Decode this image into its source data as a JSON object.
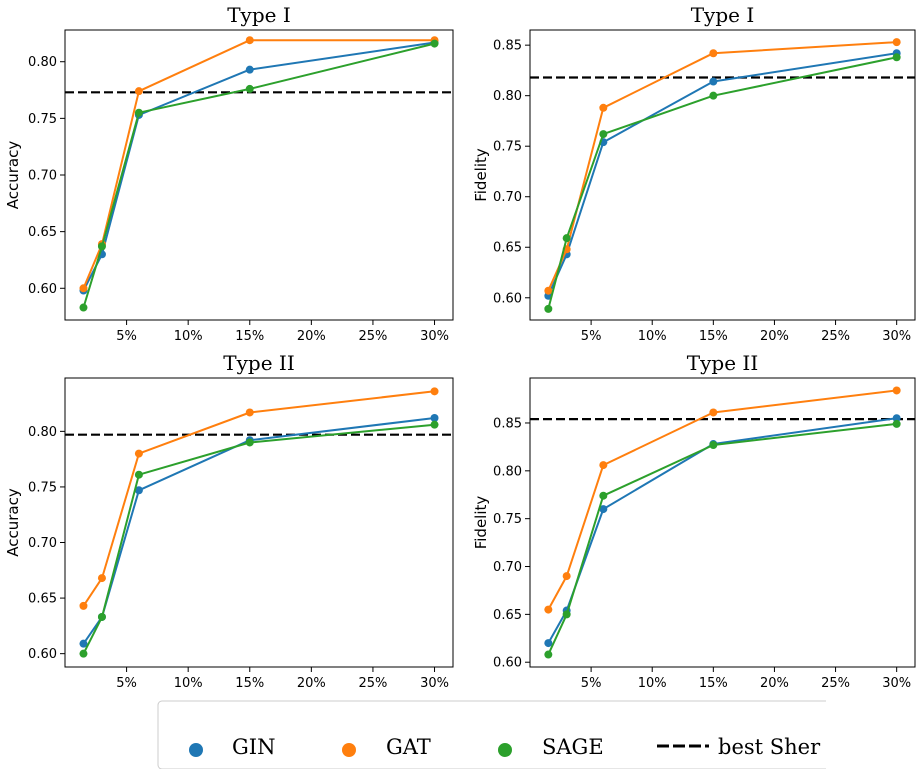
{
  "chart_data": [
    {
      "type": "line",
      "title": "Type I",
      "ylabel": "Accuracy",
      "xlabel": "",
      "x": [
        1.5,
        3,
        6,
        15,
        30
      ],
      "xticks": [
        5,
        10,
        15,
        20,
        25,
        30
      ],
      "xtick_labels": [
        "5%",
        "10%",
        "15%",
        "20%",
        "25%",
        "30%"
      ],
      "xlim": [
        0,
        31.5
      ],
      "ylim": [
        0.572,
        0.828
      ],
      "yticks": [
        0.6,
        0.65,
        0.7,
        0.75,
        0.8
      ],
      "ytick_labels": [
        "0.60",
        "0.65",
        "0.70",
        "0.75",
        "0.80"
      ],
      "series": [
        {
          "name": "GIN",
          "color": "#1f77b4",
          "values": [
            0.598,
            0.63,
            0.753,
            0.793,
            0.817
          ]
        },
        {
          "name": "GAT",
          "color": "#ff7f0e",
          "values": [
            0.6,
            0.639,
            0.774,
            0.819,
            0.819
          ]
        },
        {
          "name": "SAGE",
          "color": "#2ca02c",
          "values": [
            0.583,
            0.637,
            0.755,
            0.776,
            0.816
          ]
        }
      ],
      "hline": 0.773
    },
    {
      "type": "line",
      "title": "Type I",
      "ylabel": "Fidelity",
      "xlabel": "",
      "x": [
        1.5,
        3,
        6,
        15,
        30
      ],
      "xticks": [
        5,
        10,
        15,
        20,
        25,
        30
      ],
      "xtick_labels": [
        "5%",
        "10%",
        "15%",
        "20%",
        "25%",
        "30%"
      ],
      "xlim": [
        0,
        31.5
      ],
      "ylim": [
        0.578,
        0.865
      ],
      "yticks": [
        0.6,
        0.65,
        0.7,
        0.75,
        0.8,
        0.85
      ],
      "ytick_labels": [
        "0.60",
        "0.65",
        "0.70",
        "0.75",
        "0.80",
        "0.85"
      ],
      "series": [
        {
          "name": "GIN",
          "color": "#1f77b4",
          "values": [
            0.602,
            0.643,
            0.754,
            0.814,
            0.842
          ]
        },
        {
          "name": "GAT",
          "color": "#ff7f0e",
          "values": [
            0.607,
            0.648,
            0.788,
            0.842,
            0.853
          ]
        },
        {
          "name": "SAGE",
          "color": "#2ca02c",
          "values": [
            0.589,
            0.659,
            0.762,
            0.8,
            0.838
          ]
        }
      ],
      "hline": 0.818
    },
    {
      "type": "line",
      "title": "Type II",
      "ylabel": "Accuracy",
      "xlabel": "",
      "x": [
        1.5,
        3,
        6,
        15,
        30
      ],
      "xticks": [
        5,
        10,
        15,
        20,
        25,
        30
      ],
      "xtick_labels": [
        "5%",
        "10%",
        "15%",
        "20%",
        "25%",
        "30%"
      ],
      "xlim": [
        0,
        31.5
      ],
      "ylim": [
        0.588,
        0.848
      ],
      "yticks": [
        0.6,
        0.65,
        0.7,
        0.75,
        0.8
      ],
      "ytick_labels": [
        "0.60",
        "0.65",
        "0.70",
        "0.75",
        "0.80"
      ],
      "series": [
        {
          "name": "GIN",
          "color": "#1f77b4",
          "values": [
            0.609,
            0.633,
            0.747,
            0.792,
            0.812
          ]
        },
        {
          "name": "GAT",
          "color": "#ff7f0e",
          "values": [
            0.643,
            0.668,
            0.78,
            0.817,
            0.836
          ]
        },
        {
          "name": "SAGE",
          "color": "#2ca02c",
          "values": [
            0.6,
            0.633,
            0.761,
            0.79,
            0.806
          ]
        }
      ],
      "hline": 0.797
    },
    {
      "type": "line",
      "title": "Type II",
      "ylabel": "Fidelity",
      "xlabel": "",
      "x": [
        1.5,
        3,
        6,
        15,
        30
      ],
      "xticks": [
        5,
        10,
        15,
        20,
        25,
        30
      ],
      "xtick_labels": [
        "5%",
        "10%",
        "15%",
        "20%",
        "25%",
        "30%"
      ],
      "xlim": [
        0,
        31.5
      ],
      "ylim": [
        0.595,
        0.897
      ],
      "yticks": [
        0.6,
        0.65,
        0.7,
        0.75,
        0.8,
        0.85
      ],
      "ytick_labels": [
        "0.60",
        "0.65",
        "0.70",
        "0.75",
        "0.80",
        "0.85"
      ],
      "series": [
        {
          "name": "GIN",
          "color": "#1f77b4",
          "values": [
            0.62,
            0.654,
            0.76,
            0.828,
            0.855
          ]
        },
        {
          "name": "GAT",
          "color": "#ff7f0e",
          "values": [
            0.655,
            0.69,
            0.806,
            0.861,
            0.884
          ]
        },
        {
          "name": "SAGE",
          "color": "#2ca02c",
          "values": [
            0.608,
            0.65,
            0.774,
            0.827,
            0.849
          ]
        }
      ],
      "hline": 0.854
    }
  ],
  "legend": {
    "placement": "bottom-center",
    "items": [
      {
        "label": "GIN",
        "color": "#1f77b4",
        "marker": "dot"
      },
      {
        "label": "GAT",
        "color": "#ff7f0e",
        "marker": "dot"
      },
      {
        "label": "SAGE",
        "color": "#2ca02c",
        "marker": "dot"
      },
      {
        "label": "best Sher",
        "color": "#000000",
        "marker": "dashed-line"
      }
    ]
  }
}
